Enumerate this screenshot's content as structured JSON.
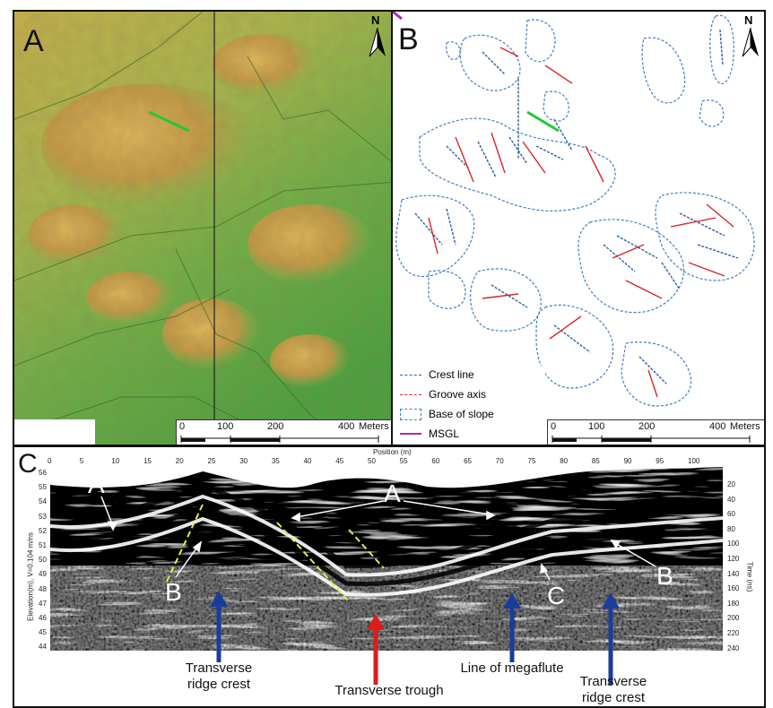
{
  "panel_a": {
    "label": "A",
    "north": "N",
    "scale": {
      "ticks": [
        "0",
        "100",
        "200",
        "400"
      ],
      "unit": "Meters"
    }
  },
  "panel_b": {
    "label": "B",
    "north": "N",
    "scale": {
      "ticks": [
        "0",
        "100",
        "200",
        "400"
      ],
      "unit": "Meters"
    },
    "legend": [
      {
        "label": "Crest line",
        "color": "#2a5ea8",
        "style": "dashed"
      },
      {
        "label": "Groove axis",
        "color": "#d7262a",
        "style": "dashed"
      },
      {
        "label": "Base of slope",
        "color": "#3e7cc9",
        "style": "box"
      },
      {
        "label": "MSGL",
        "color": "#b02aa8",
        "style": "solid"
      }
    ]
  },
  "panel_c": {
    "label": "C",
    "top_axis_label": "Position (m)",
    "top_ticks": [
      "0",
      "5",
      "10",
      "15",
      "20",
      "25",
      "30",
      "35",
      "40",
      "45",
      "50",
      "55",
      "60",
      "65",
      "70",
      "75",
      "80",
      "85",
      "90",
      "95",
      "100"
    ],
    "left_axis_label": "Elevation(m), V=0.104 m/ns",
    "left_ticks": [
      "56",
      "55",
      "54",
      "53",
      "52",
      "51",
      "50",
      "49",
      "48",
      "47",
      "46",
      "45",
      "44"
    ],
    "right_axis_label": "Time (ns)",
    "right_ticks": [
      "20",
      "40",
      "60",
      "80",
      "100",
      "120",
      "140",
      "160",
      "180",
      "200",
      "220",
      "240"
    ],
    "radar_labels": {
      "a_left": "A",
      "a_mid": "A",
      "b_left": "B",
      "c_mid": "C",
      "b_right": "B"
    },
    "annotations": {
      "trc1_line1": "Transverse",
      "trc1_line2": "ridge crest",
      "trough": "Transverse trough",
      "megaflute": "Line of megaflute",
      "trc2_line1": "Transverse",
      "trc2_line2": "ridge crest"
    },
    "arrow_colors": {
      "crest": "#1a3d9c",
      "trough": "#e01b1b"
    }
  }
}
